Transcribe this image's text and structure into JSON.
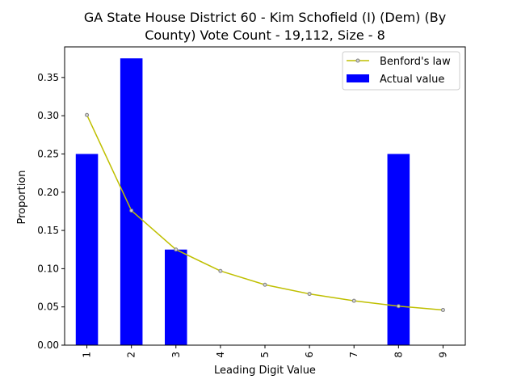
{
  "chart_data": {
    "type": "bar",
    "title_line1": "GA State House District 60 - Kim Schofield (I) (Dem) (By",
    "title_line2": "County) Vote Count - 19,112, Size - 8",
    "xlabel": "Leading Digit Value",
    "ylabel": "Proportion",
    "categories": [
      "1",
      "2",
      "3",
      "4",
      "5",
      "6",
      "7",
      "8",
      "9"
    ],
    "ylim": [
      0,
      0.39
    ],
    "yticks": [
      "0.00",
      "0.05",
      "0.10",
      "0.15",
      "0.20",
      "0.25",
      "0.30",
      "0.35"
    ],
    "series": [
      {
        "name": "Actual value",
        "kind": "bar",
        "color": "#0000ff",
        "values": [
          0.25,
          0.375,
          0.125,
          0,
          0,
          0,
          0,
          0.25,
          0
        ]
      },
      {
        "name": "Benford's law",
        "kind": "line",
        "color": "#bfbf00",
        "values": [
          0.301,
          0.176,
          0.125,
          0.097,
          0.079,
          0.067,
          0.058,
          0.051,
          0.046
        ]
      }
    ],
    "legend": {
      "position": "top-right",
      "entries": [
        "Benford's law",
        "Actual value"
      ]
    }
  }
}
